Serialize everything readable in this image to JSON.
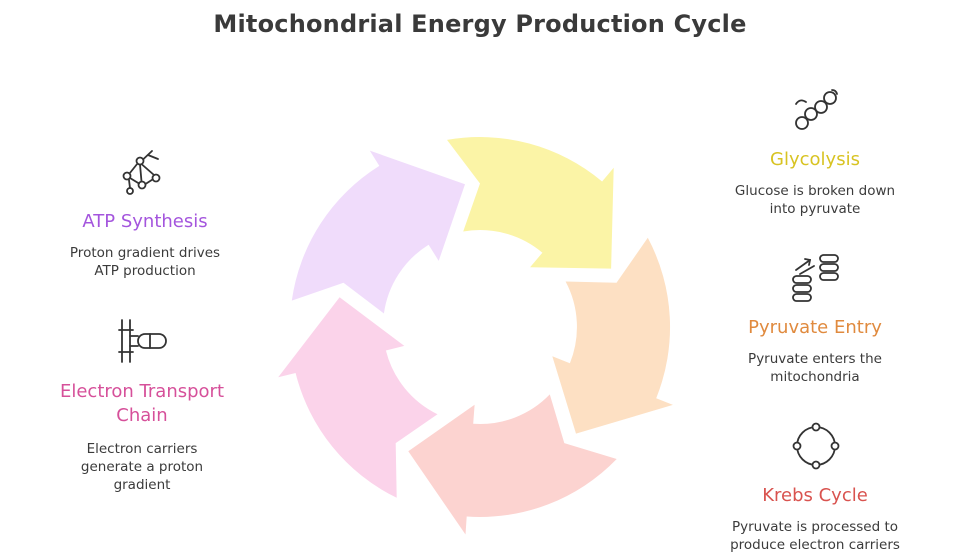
{
  "title": "Mitochondrial Energy Production Cycle",
  "stages": [
    {
      "id": "glycolysis",
      "heading": "Glycolysis",
      "description_lines": [
        "Glucose is broken down",
        "into pyruvate"
      ],
      "color": "#d8c322",
      "fill": "#fbf4a6",
      "icon": "glucose-chain-icon"
    },
    {
      "id": "pyruvate-entry",
      "heading": "Pyruvate Entry",
      "description_lines": [
        "Pyruvate enters the",
        "mitochondria"
      ],
      "color": "#e08a3e",
      "fill": "#fde0c3",
      "icon": "transfer-stacks-icon"
    },
    {
      "id": "krebs-cycle",
      "heading": "Krebs Cycle",
      "description_lines": [
        "Pyruvate is processed to",
        "produce electron carriers"
      ],
      "color": "#d9534f",
      "fill": "#fcd3d0",
      "icon": "cycle-ring-icon"
    },
    {
      "id": "electron-transport-chain",
      "heading_lines": [
        "Electron Transport",
        "Chain"
      ],
      "description_lines": [
        "Electron carriers",
        "generate a proton",
        "gradient"
      ],
      "color": "#d6509a",
      "fill": "#fbd3ea",
      "icon": "pipe-connector-icon"
    },
    {
      "id": "atp-synthesis",
      "heading": "ATP Synthesis",
      "description_lines": [
        "Proton gradient drives",
        "ATP production"
      ],
      "color": "#a455dd",
      "fill": "#f0dcfb",
      "icon": "molecule-network-icon"
    }
  ]
}
